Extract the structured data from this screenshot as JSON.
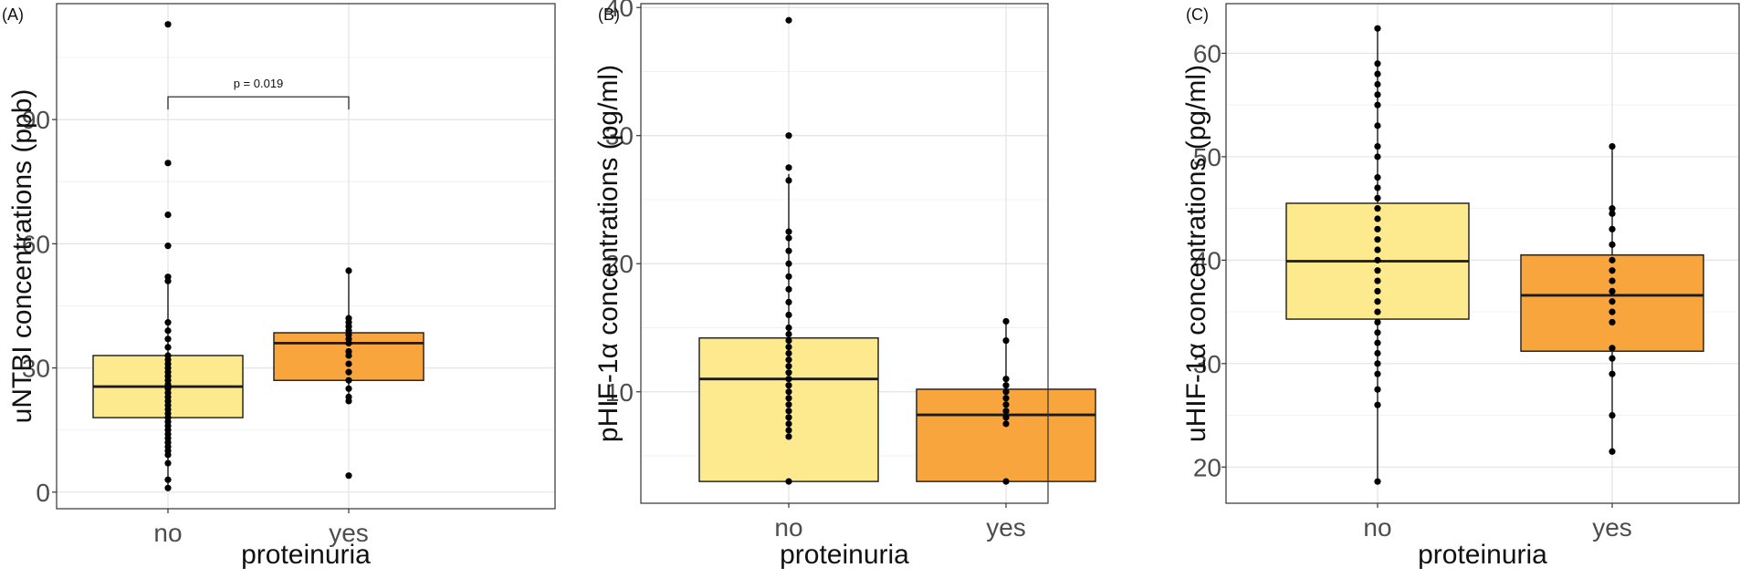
{
  "chart_data": [
    {
      "type": "box",
      "panel_label": "(A)",
      "xlabel": "proteinuria",
      "ylabel": "uNTBI concentrations (ppb)",
      "categories": [
        "no",
        "yes"
      ],
      "ylim": [
        -4,
        118
      ],
      "yticks": [
        0,
        30,
        60,
        90
      ],
      "y_gridlines": [
        0,
        15,
        30,
        45,
        60,
        75,
        90,
        105
      ],
      "grid": true,
      "fill_colors": [
        "#fde98e",
        "#f8a53e"
      ],
      "boxes": [
        {
          "category": "no",
          "q1": 18,
          "median": 25.5,
          "q3": 33,
          "whisker_low": 1,
          "whisker_high": 51,
          "points": [
            1,
            3,
            7,
            9,
            10,
            11,
            12,
            13,
            14,
            15,
            16,
            17,
            18,
            19,
            20,
            21,
            22,
            23,
            24,
            25,
            25.5,
            26,
            27,
            28,
            29,
            30,
            31,
            32,
            33,
            35,
            37,
            39,
            41,
            51,
            52,
            59.5,
            67,
            79.5,
            113
          ]
        },
        {
          "category": "yes",
          "q1": 27,
          "median": 36,
          "q3": 38.5,
          "whisker_low": 22,
          "whisker_high": 53.5,
          "points": [
            4,
            22,
            23,
            25,
            27,
            29,
            31,
            33,
            34,
            36,
            37,
            38,
            39,
            40,
            41,
            42,
            53.5
          ]
        }
      ],
      "annotation": {
        "text": "p = 0.019",
        "y": 95.5
      }
    },
    {
      "type": "box",
      "panel_label": "(B)",
      "xlabel": "proteinuria",
      "ylabel": "pHIF-1α concentrations (pg/ml)",
      "categories": [
        "no",
        "yes"
      ],
      "ylim": [
        1.3,
        40.3
      ],
      "yticks": [
        10,
        20,
        30,
        40
      ],
      "y_gridlines": [
        5,
        10,
        15,
        20,
        25,
        30,
        35,
        40
      ],
      "grid": true,
      "fill_colors": [
        "#fde98e",
        "#f8a53e"
      ],
      "boxes": [
        {
          "category": "no",
          "q1": 3,
          "median": 11,
          "q3": 14.2,
          "whisker_low": 3,
          "whisker_high": 27,
          "points": [
            3,
            6.5,
            7,
            7.5,
            8,
            8.5,
            9,
            9.5,
            10,
            10.5,
            11,
            11.5,
            12,
            12.5,
            13,
            13.5,
            14,
            14.5,
            15,
            16,
            17,
            18,
            19,
            20,
            21,
            22,
            22.5,
            26.5,
            27.5,
            30,
            39
          ]
        },
        {
          "category": "yes",
          "q1": 3,
          "median": 8.2,
          "q3": 10.2,
          "whisker_low": 3,
          "whisker_high": 15.5,
          "points": [
            3,
            7.5,
            8,
            8.5,
            9,
            9.5,
            10,
            10.5,
            11,
            14,
            15.5
          ]
        }
      ]
    },
    {
      "type": "box",
      "panel_label": "(C)",
      "xlabel": "proteinuria",
      "ylabel": "uHIF-1α concentrations (pg/ml)",
      "categories": [
        "no",
        "yes"
      ],
      "ylim": [
        16.5,
        64.8
      ],
      "yticks": [
        20,
        30,
        40,
        50,
        60
      ],
      "y_gridlines": [
        20,
        25,
        30,
        35,
        40,
        45,
        50,
        55,
        60
      ],
      "grid": true,
      "fill_colors": [
        "#fde98e",
        "#f8a53e"
      ],
      "boxes": [
        {
          "category": "no",
          "q1": 34.3,
          "median": 39.9,
          "q3": 45.5,
          "whisker_low": 18.6,
          "whisker_high": 62.4,
          "points": [
            18.6,
            26,
            27.5,
            29,
            30,
            31,
            32,
            33,
            34,
            35,
            36,
            37,
            38,
            39,
            40,
            41,
            42,
            43,
            44,
            45,
            46,
            47,
            48,
            50,
            51,
            53,
            55,
            56,
            57,
            58,
            59,
            62.4
          ]
        },
        {
          "category": "yes",
          "q1": 31.2,
          "median": 36.6,
          "q3": 40.5,
          "whisker_low": 21.5,
          "whisker_high": 51,
          "points": [
            21.5,
            25,
            29,
            30.5,
            31.5,
            34,
            35,
            36,
            37,
            38,
            39,
            40,
            41.5,
            43,
            44.5,
            45,
            51
          ]
        }
      ]
    }
  ]
}
